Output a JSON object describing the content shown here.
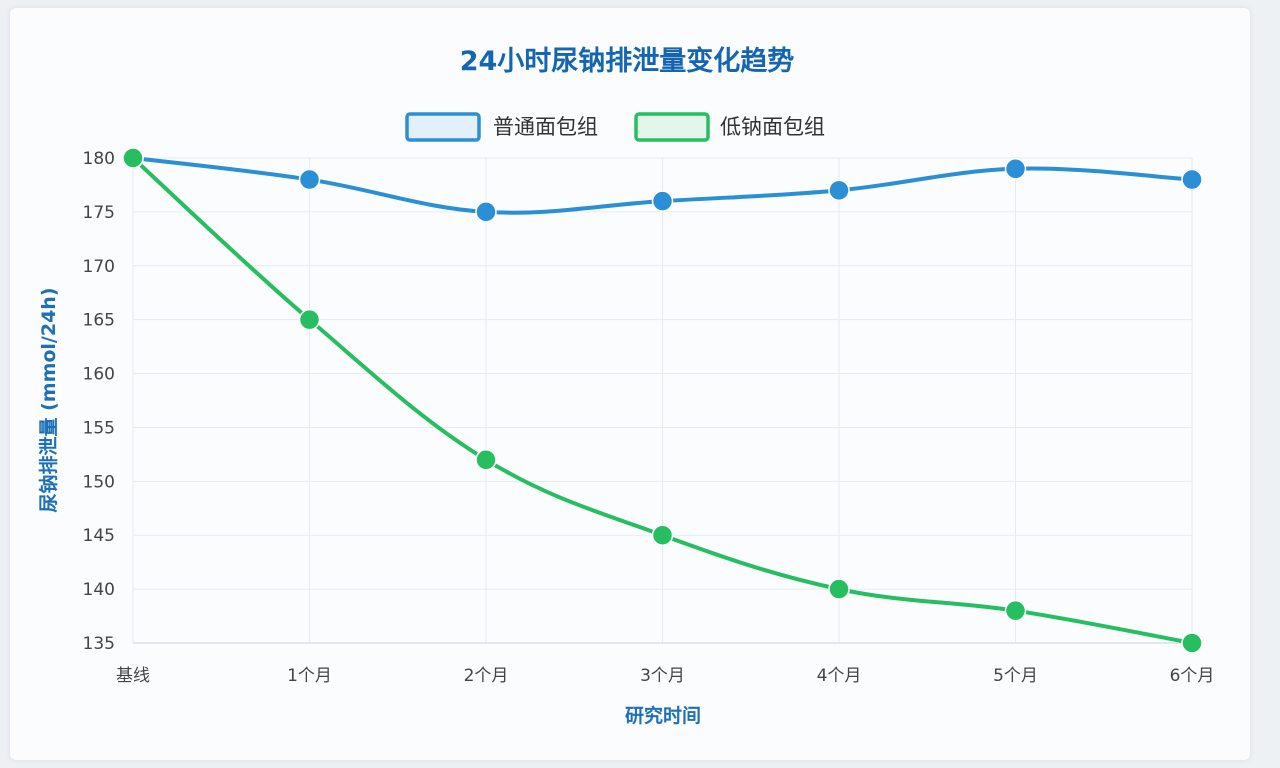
{
  "chart_data": {
    "type": "line",
    "title": "24小时尿钠排泄量变化趋势",
    "xlabel": "研究时间",
    "ylabel": "尿钠排泄量 (mmol/24h)",
    "categories": [
      "基线",
      "1个月",
      "2个月",
      "3个月",
      "4个月",
      "5个月",
      "6个月"
    ],
    "ylim": [
      135,
      180
    ],
    "yticks": [
      180,
      175,
      170,
      165,
      160,
      155,
      150,
      145,
      140,
      135
    ],
    "grid": true,
    "legend_position": "top-center",
    "series": [
      {
        "name": "普通面包组",
        "color": "#2b8fd6",
        "fill": "#e3f0fb",
        "values": [
          180,
          178,
          175,
          176,
          177,
          179,
          178
        ]
      },
      {
        "name": "低钠面包组",
        "color": "#27be62",
        "fill": "#e2f7ea",
        "values": [
          180,
          165,
          152,
          145,
          140,
          138,
          135
        ]
      }
    ]
  }
}
